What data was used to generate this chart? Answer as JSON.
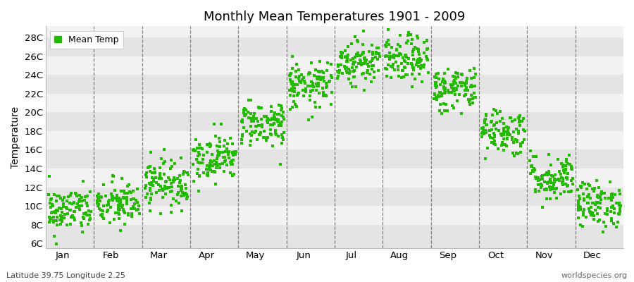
{
  "title": "Monthly Mean Temperatures 1901 - 2009",
  "ylabel": "Temperature",
  "dot_color": "#22BB00",
  "band_color_light": "#F2F2F2",
  "band_color_dark": "#E4E4E4",
  "ytick_labels": [
    "6C",
    "8C",
    "10C",
    "12C",
    "14C",
    "16C",
    "18C",
    "20C",
    "22C",
    "24C",
    "26C",
    "28C"
  ],
  "ytick_values": [
    6,
    8,
    10,
    12,
    14,
    16,
    18,
    20,
    22,
    24,
    26,
    28
  ],
  "ylim": [
    5.5,
    29.2
  ],
  "months": [
    "Jan",
    "Feb",
    "Mar",
    "Apr",
    "May",
    "Jun",
    "Jul",
    "Aug",
    "Sep",
    "Oct",
    "Nov",
    "Dec"
  ],
  "subtitle_left": "Latitude 39.75 Longitude 2.25",
  "subtitle_right": "worldspecies.org",
  "legend_label": "Mean Temp",
  "num_years": 109,
  "seed": 42,
  "mean_temps": [
    9.5,
    10.2,
    12.5,
    15.2,
    18.8,
    22.8,
    25.5,
    25.6,
    22.5,
    18.0,
    13.0,
    10.2
  ],
  "std_temps": [
    1.2,
    1.2,
    1.2,
    1.2,
    1.2,
    1.2,
    1.2,
    1.2,
    1.2,
    1.2,
    1.2,
    1.2
  ]
}
